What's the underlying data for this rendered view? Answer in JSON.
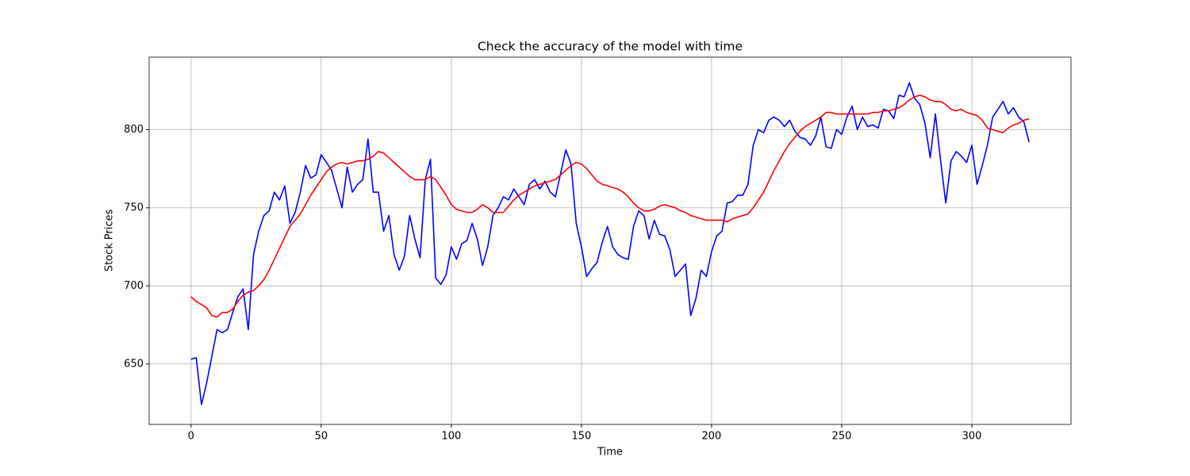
{
  "chart_data": {
    "type": "line",
    "title": "Check the accuracy of the model with time",
    "xlabel": "Time",
    "ylabel": "Stock Prices",
    "grid": true,
    "xlim": [
      -16.1,
      338.1
    ],
    "ylim": [
      611.3,
      846.4
    ],
    "xticks": [
      0,
      50,
      100,
      150,
      200,
      250,
      300
    ],
    "yticks": [
      650,
      700,
      750,
      800
    ],
    "x": [
      0,
      2,
      4,
      6,
      8,
      10,
      12,
      14,
      16,
      18,
      20,
      22,
      24,
      26,
      28,
      30,
      32,
      34,
      36,
      38,
      40,
      42,
      44,
      46,
      48,
      50,
      52,
      54,
      56,
      58,
      60,
      62,
      64,
      66,
      68,
      70,
      72,
      74,
      76,
      78,
      80,
      82,
      84,
      86,
      88,
      90,
      92,
      94,
      96,
      98,
      100,
      102,
      104,
      106,
      108,
      110,
      112,
      114,
      116,
      118,
      120,
      122,
      124,
      126,
      128,
      130,
      132,
      134,
      136,
      138,
      140,
      142,
      144,
      146,
      148,
      150,
      152,
      154,
      156,
      158,
      160,
      162,
      164,
      166,
      168,
      170,
      172,
      174,
      176,
      178,
      180,
      182,
      184,
      186,
      188,
      190,
      192,
      194,
      196,
      198,
      200,
      202,
      204,
      206,
      208,
      210,
      212,
      214,
      216,
      218,
      220,
      222,
      224,
      226,
      228,
      230,
      232,
      234,
      236,
      238,
      240,
      242,
      244,
      246,
      248,
      250,
      252,
      254,
      256,
      258,
      260,
      262,
      264,
      266,
      268,
      270,
      272,
      274,
      276,
      278,
      280,
      282,
      284,
      286,
      288,
      290,
      292,
      294,
      296,
      298,
      300,
      302,
      304,
      306,
      308,
      310,
      312,
      314,
      316,
      318,
      320,
      322
    ],
    "series": [
      {
        "color": "#0000ff",
        "values": [
          653,
          654,
          624,
          638,
          655,
          672,
          670,
          672,
          683,
          693,
          698,
          672,
          720,
          735,
          745,
          748,
          760,
          755,
          764,
          740,
          747,
          760,
          777,
          769,
          771,
          784,
          779,
          774,
          762,
          750,
          776,
          760,
          765,
          768,
          794,
          760,
          760,
          735,
          745,
          720,
          710,
          719,
          745,
          730,
          718,
          768,
          781,
          705,
          701,
          707,
          725,
          717,
          727,
          729,
          740,
          730,
          713,
          725,
          745,
          750,
          757,
          755,
          762,
          757,
          752,
          765,
          768,
          762,
          767,
          760,
          757,
          772,
          787,
          778,
          740,
          725,
          706,
          711,
          715,
          728,
          738,
          725,
          720,
          718,
          717,
          738,
          748,
          745,
          730,
          742,
          733,
          732,
          723,
          706,
          710,
          714,
          681,
          692,
          710,
          706,
          722,
          732,
          735,
          753,
          754,
          758,
          758,
          765,
          790,
          800,
          798,
          806,
          808,
          806,
          802,
          806,
          799,
          795,
          794,
          790,
          796,
          808,
          789,
          788,
          800,
          797,
          808,
          815,
          800,
          808,
          802,
          803,
          801,
          813,
          812,
          807,
          822,
          821,
          830,
          820,
          816,
          804,
          782,
          810,
          780,
          753,
          780,
          786,
          783,
          779,
          790,
          765,
          777,
          790,
          808,
          813,
          818,
          810,
          814,
          808,
          805,
          792
        ]
      },
      {
        "color": "#ff0000",
        "values": [
          693,
          690,
          688,
          686,
          681,
          680,
          683,
          683,
          685,
          690,
          694,
          696,
          697,
          700,
          704,
          710,
          717,
          724,
          731,
          738,
          742,
          746,
          752,
          758,
          763,
          768,
          773,
          776,
          778,
          779,
          778,
          779,
          780,
          780,
          781,
          783,
          786,
          785,
          782,
          779,
          776,
          773,
          770,
          768,
          768,
          768,
          770,
          768,
          763,
          758,
          752,
          749,
          748,
          747,
          747,
          749,
          752,
          750,
          747,
          747,
          747,
          751,
          755,
          758,
          760,
          762,
          764,
          765,
          766,
          767,
          768,
          771,
          774,
          777,
          779,
          778,
          775,
          771,
          767,
          765,
          764,
          763,
          762,
          760,
          757,
          753,
          750,
          748,
          748,
          749,
          751,
          752,
          751,
          750,
          748,
          747,
          745,
          744,
          743,
          742,
          742,
          742,
          742,
          741,
          743,
          744,
          745,
          746,
          750,
          755,
          760,
          767,
          774,
          780,
          786,
          791,
          795,
          799,
          802,
          804,
          806,
          808,
          811,
          811,
          810,
          810,
          810,
          810,
          810,
          810,
          810,
          811,
          811,
          812,
          812,
          813,
          814,
          816,
          819,
          821,
          822,
          821,
          819,
          818,
          818,
          816,
          813,
          812,
          813,
          811,
          810,
          809,
          806,
          801,
          800,
          799,
          798,
          801,
          803,
          804,
          806,
          807
        ]
      }
    ]
  }
}
